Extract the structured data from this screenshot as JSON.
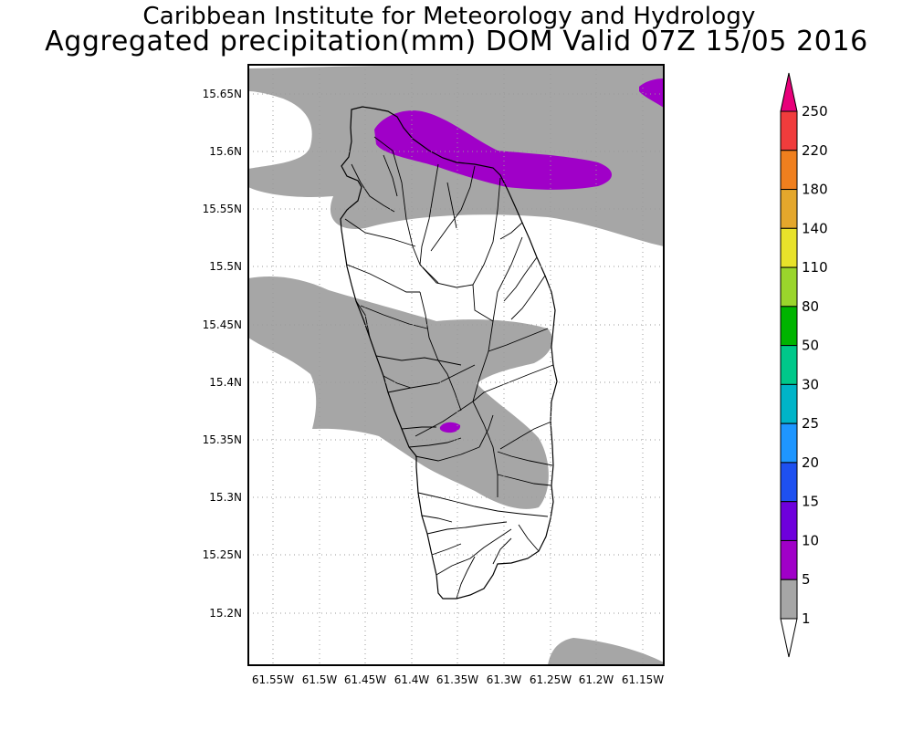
{
  "title": {
    "line1": "Caribbean Institute for Meteorology and Hydrology",
    "line2": "Aggregated precipitation(mm) DOM Valid 07Z 15/05 2016"
  },
  "map": {
    "lon_ticks": [
      "61.55W",
      "61.5W",
      "61.45W",
      "61.4W",
      "61.35W",
      "61.3W",
      "61.25W",
      "61.2W",
      "61.15W"
    ],
    "lat_ticks": [
      "15.65N",
      "15.6N",
      "15.55N",
      "15.5N",
      "15.45N",
      "15.4N",
      "15.35N",
      "15.3N",
      "15.25N",
      "15.2N"
    ],
    "grid": "dotted",
    "land_color": "#ffffff",
    "coast_color": "#000000"
  },
  "legend": {
    "labels": [
      "250",
      "220",
      "180",
      "140",
      "110",
      "80",
      "50",
      "30",
      "25",
      "20",
      "15",
      "10",
      "5",
      "1"
    ],
    "colors": [
      "#e8007a",
      "#f03c3c",
      "#ef7f1e",
      "#e4a72c",
      "#e8e22a",
      "#9ad52c",
      "#00b400",
      "#00c88a",
      "#00b4c8",
      "#1e96ff",
      "#1e50f0",
      "#6e00dc",
      "#a000c8",
      "#a6a6a6",
      "#ffffff"
    ]
  }
}
